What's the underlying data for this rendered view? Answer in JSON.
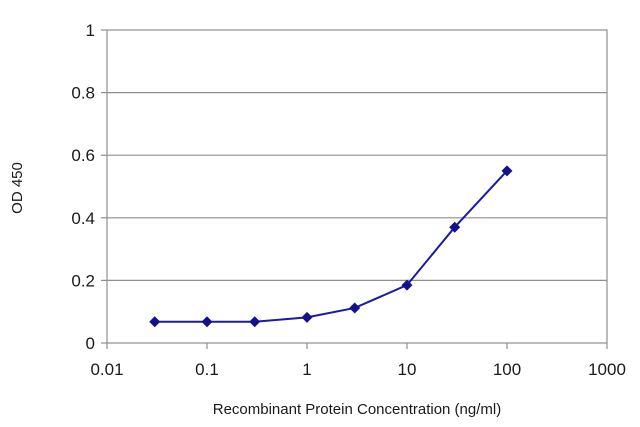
{
  "chart_data": {
    "type": "line",
    "title": "",
    "xlabel": "Recombinant Protein Concentration (ng/ml)",
    "ylabel": "OD 450",
    "x_scale": "log",
    "xlim": [
      0.01,
      1000
    ],
    "ylim": [
      0,
      1
    ],
    "x_ticks": [
      "0.01",
      "0.1",
      "1",
      "10",
      "100",
      "1000"
    ],
    "y_ticks": [
      "0",
      "0.2",
      "0.4",
      "0.6",
      "0.8",
      "1"
    ],
    "grid": "horizontal",
    "legend": "none",
    "series": [
      {
        "x": [
          0.03,
          0.1,
          0.3,
          1,
          3,
          10,
          30,
          100
        ],
        "y": [
          0.068,
          0.068,
          0.068,
          0.082,
          0.112,
          0.185,
          0.37,
          0.55
        ]
      }
    ],
    "colors": {
      "line": "#1a1aa6",
      "marker": "#12128c",
      "grid": "#8f8f8f",
      "frame": "#8f8f8f"
    }
  }
}
